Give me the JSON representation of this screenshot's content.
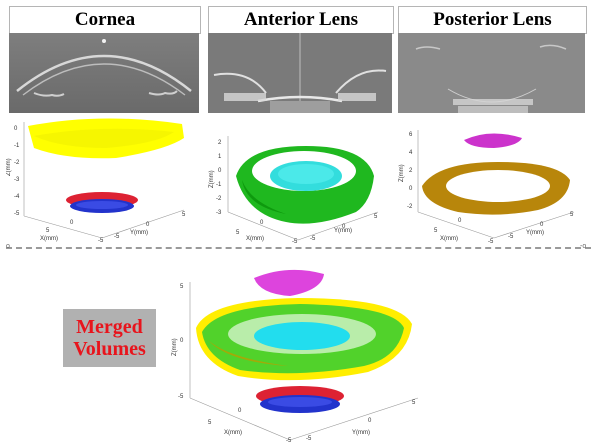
{
  "panels": {
    "cornea": {
      "title": "Cornea"
    },
    "anterior_lens": {
      "title": "Anterior Lens"
    },
    "posterior_lens": {
      "title": "Posterior Lens"
    }
  },
  "merged": {
    "line1": "Merged",
    "line2": "Volumes"
  },
  "separator": {
    "left_mark": "o",
    "right_mark": "-o"
  },
  "axes": {
    "z_label": "Z(mm)",
    "x_label": "X(mm)",
    "y_label": "Y(mm)",
    "cornea_z_ticks": [
      "0",
      "-1",
      "-2",
      "-3",
      "-4",
      "-5"
    ],
    "anterior_z_ticks": [
      "2",
      "1",
      "0",
      "-1",
      "-2",
      "-3"
    ],
    "posterior_z_ticks": [
      "6",
      "4",
      "2",
      "0",
      "-2"
    ],
    "merged_z_ticks": [
      "5",
      "0",
      "-5"
    ],
    "x_ticks": [
      "5",
      "0",
      "-5"
    ],
    "y_ticks": [
      "5",
      "0",
      "-5"
    ]
  },
  "colors": {
    "cornea_cloud": "#ffff00",
    "anterior_surface": "#00cc00",
    "anterior_center": "#33dddd",
    "posterior_surface": "#b8860b",
    "posterior_top": "#cc33cc",
    "cornea_disc": "#2233cc",
    "cornea_disc_red": "#dd2233",
    "merged_label": "#e8141c",
    "merged_box": "#b1b1b1"
  }
}
